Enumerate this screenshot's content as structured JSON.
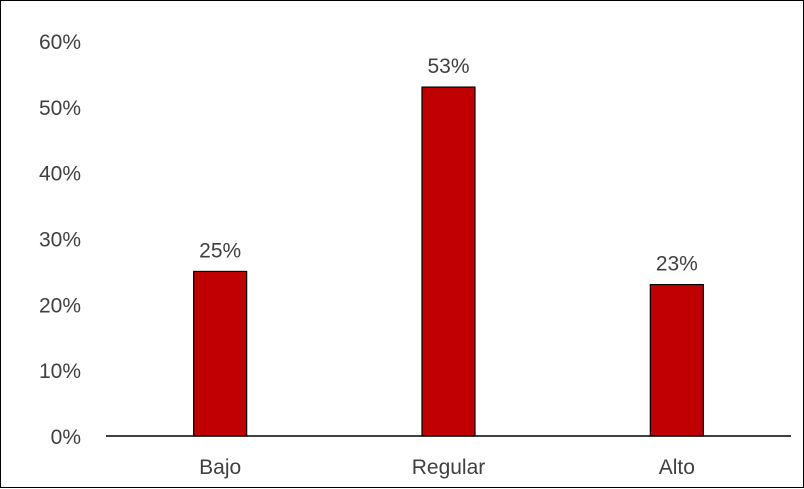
{
  "chart_data": {
    "type": "bar",
    "title": "",
    "xlabel": "",
    "ylabel": "",
    "categories": [
      "Bajo",
      "Regular",
      "Alto"
    ],
    "values": [
      25,
      53,
      23
    ],
    "data_labels": [
      "25%",
      "53%",
      "23%"
    ],
    "ylim": [
      0,
      60
    ],
    "yticks": [
      0,
      10,
      20,
      30,
      40,
      50,
      60
    ],
    "ytick_labels": [
      "0%",
      "10%",
      "20%",
      "30%",
      "40%",
      "50%",
      "60%"
    ],
    "grid": false,
    "legend": "none",
    "bar_color": "#c00000",
    "bar_edge_color": "#000000"
  }
}
